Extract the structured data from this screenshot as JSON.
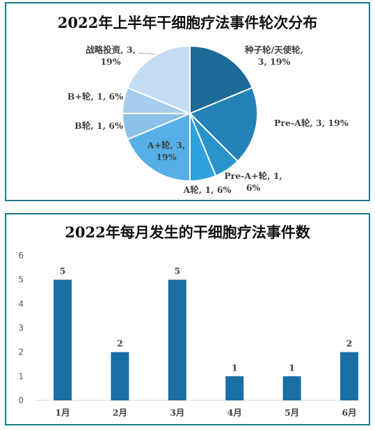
{
  "chart_data": [
    {
      "type": "pie",
      "title": "2022年上半年干细胞疗法事件轮次分布",
      "slices": [
        {
          "name": "种子轮/天使轮",
          "value": 3,
          "percent": "19%",
          "color": "#1c6a96",
          "label_lines": [
            "种子轮/天使轮,",
            "3, 19%"
          ]
        },
        {
          "name": "Pre-A轮",
          "value": 3,
          "percent": "19%",
          "color": "#2282b8",
          "label_lines": [
            "Pre-A轮, 3, 19%"
          ]
        },
        {
          "name": "Pre-A+轮",
          "value": 1,
          "percent": "6%",
          "color": "#2993cc",
          "label_lines": [
            "Pre-A+轮, 1,",
            "6%"
          ]
        },
        {
          "name": "A轮",
          "value": 1,
          "percent": "6%",
          "color": "#2ea2de",
          "label_lines": [
            "A轮, 1, 6%"
          ]
        },
        {
          "name": "A+轮",
          "value": 3,
          "percent": "19%",
          "color": "#56afe6",
          "label_lines": [
            "A+轮, 3,",
            "19%"
          ]
        },
        {
          "name": "B轮",
          "value": 1,
          "percent": "6%",
          "color": "#8ec1e9",
          "label_lines": [
            "B轮, 1, 6%"
          ]
        },
        {
          "name": "B+轮",
          "value": 1,
          "percent": "6%",
          "color": "#a7cdec",
          "label_lines": [
            "B+轮, 1, 6%"
          ]
        },
        {
          "name": "战略投资",
          "value": 3,
          "percent": "19%",
          "color": "#c3dcf1",
          "label_lines": [
            "战略投资, 3,",
            "19%"
          ]
        }
      ]
    },
    {
      "type": "bar",
      "title": "2022年每月发生的干细胞疗法事件数",
      "categories": [
        "1月",
        "2月",
        "3月",
        "4月",
        "5月",
        "6月"
      ],
      "values": [
        5,
        2,
        5,
        1,
        1,
        2
      ],
      "ylim": [
        0,
        6
      ],
      "yticks": [
        "0",
        "1",
        "2",
        "3",
        "4",
        "5",
        "6"
      ],
      "bar_color": "#1a6fa3",
      "grid": false
    }
  ]
}
